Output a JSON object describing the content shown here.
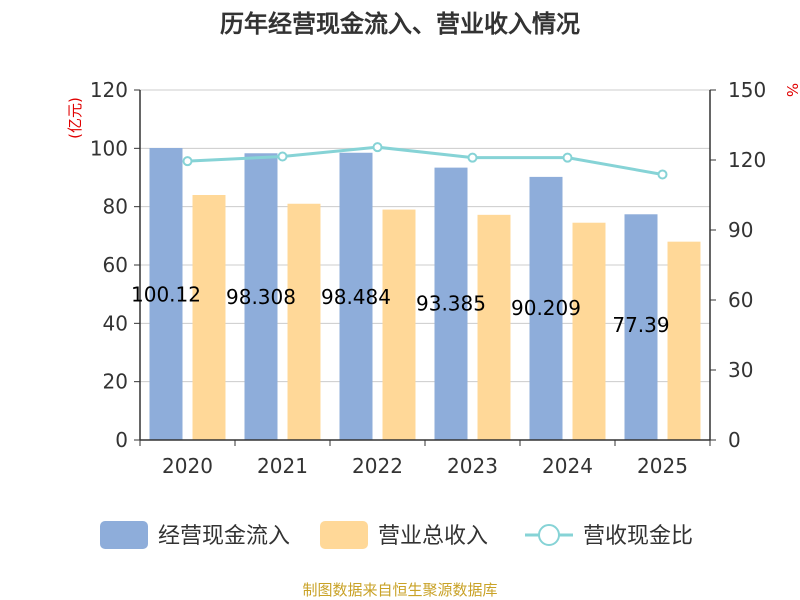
{
  "chart_data": {
    "type": "bar",
    "title": "历年经营现金流入、营业收入情况",
    "categories": [
      "2020",
      "2021",
      "2022",
      "2023",
      "2024",
      "2025"
    ],
    "y_left": {
      "unit": "(亿元)",
      "min": 0,
      "max": 120,
      "ticks": [
        "0",
        "20",
        "40",
        "60",
        "80",
        "100",
        "120"
      ]
    },
    "y_right": {
      "unit": "%",
      "min": 0,
      "max": 150,
      "ticks": [
        "0",
        "30",
        "60",
        "90",
        "120",
        "150"
      ]
    },
    "series": [
      {
        "name": "经营现金流入",
        "type": "bar",
        "axis": "left",
        "color": "#8eadda",
        "values": [
          100.12,
          98.308,
          98.484,
          93.385,
          90.209,
          77.39
        ],
        "labels": [
          "100.12",
          "98.308",
          "98.484",
          "93.385",
          "90.209",
          "77.39"
        ]
      },
      {
        "name": "营业总收入",
        "type": "bar",
        "axis": "left",
        "color": "#ffd898",
        "values": [
          84.0,
          81.0,
          79.0,
          77.2,
          74.5,
          68.0
        ]
      },
      {
        "name": "营收现金比",
        "type": "line",
        "axis": "right",
        "color": "#86d3d6",
        "values": [
          119.5,
          121.5,
          125.5,
          121.0,
          121.0,
          113.8
        ]
      }
    ],
    "grid": true,
    "legend_position": "bottom"
  },
  "footer": "制图数据来自恒生聚源数据库"
}
